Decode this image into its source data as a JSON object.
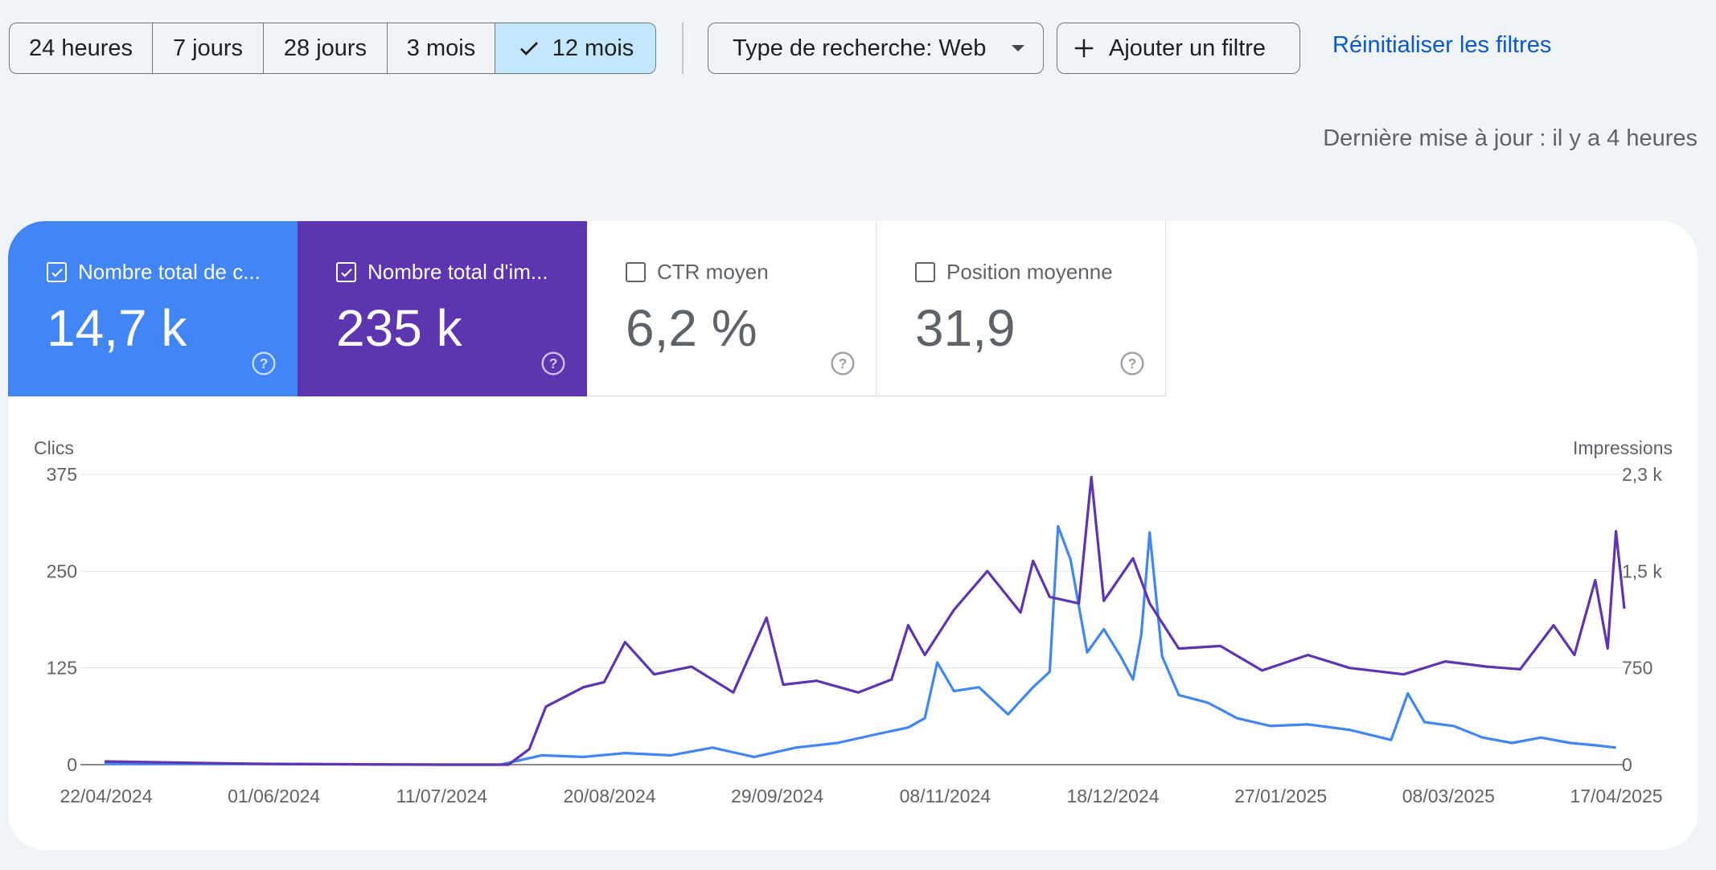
{
  "toolbar": {
    "ranges": [
      "24 heures",
      "7 jours",
      "28 jours",
      "3 mois",
      "12 mois"
    ],
    "selected_range": "12 mois",
    "search_type": "Type de recherche: Web",
    "add_filter": "Ajouter un filtre",
    "reset_filters": "Réinitialiser les filtres"
  },
  "last_updated": "Dernière mise à jour : il y a 4 heures",
  "metrics": [
    {
      "label": "Nombre total de c...",
      "value": "14,7 k",
      "checked": true,
      "color": "#4285f4"
    },
    {
      "label": "Nombre total d'im...",
      "value": "235 k",
      "checked": true,
      "color": "#5e35b1"
    },
    {
      "label": "CTR moyen",
      "value": "6,2 %",
      "checked": false
    },
    {
      "label": "Position moyenne",
      "value": "31,9",
      "checked": false
    }
  ],
  "colors": {
    "clicks": "#4285f4",
    "impressions": "#5e35b1",
    "accent": "#0b57d0",
    "selected_bg": "#c2e7ff"
  },
  "chart_data": {
    "type": "line",
    "left_axis_label": "Clics",
    "right_axis_label": "Impressions",
    "left_ticks": [
      "375",
      "250",
      "125",
      "0"
    ],
    "right_ticks": [
      "2,3 k",
      "1,5 k",
      "750",
      "0"
    ],
    "left_ylim": [
      0,
      375
    ],
    "right_ylim": [
      0,
      2250
    ],
    "grid": true,
    "x_tick_labels": [
      "22/04/2024",
      "01/06/2024",
      "11/07/2024",
      "20/08/2024",
      "29/09/2024",
      "08/11/2024",
      "18/12/2024",
      "27/01/2025",
      "08/03/2025",
      "17/04/2025"
    ],
    "x_range": [
      "2024-04-22",
      "2025-04-22"
    ],
    "series": [
      {
        "name": "Clics",
        "axis": "left",
        "color": "#4285f4",
        "points": [
          [
            "2024-04-22",
            1
          ],
          [
            "2024-06-01",
            1
          ],
          [
            "2024-07-11",
            0
          ],
          [
            "2024-07-26",
            0
          ],
          [
            "2024-08-05",
            12
          ],
          [
            "2024-08-15",
            10
          ],
          [
            "2024-08-25",
            15
          ],
          [
            "2024-09-05",
            12
          ],
          [
            "2024-09-15",
            22
          ],
          [
            "2024-09-25",
            10
          ],
          [
            "2024-10-05",
            22
          ],
          [
            "2024-10-15",
            28
          ],
          [
            "2024-10-25",
            40
          ],
          [
            "2024-11-01",
            48
          ],
          [
            "2024-11-05",
            60
          ],
          [
            "2024-11-08",
            132
          ],
          [
            "2024-11-12",
            95
          ],
          [
            "2024-11-18",
            100
          ],
          [
            "2024-11-25",
            65
          ],
          [
            "2024-12-01",
            100
          ],
          [
            "2024-12-05",
            120
          ],
          [
            "2024-12-07",
            308
          ],
          [
            "2024-12-10",
            265
          ],
          [
            "2024-12-14",
            145
          ],
          [
            "2024-12-18",
            175
          ],
          [
            "2024-12-22",
            140
          ],
          [
            "2024-12-25",
            110
          ],
          [
            "2024-12-27",
            168
          ],
          [
            "2024-12-29",
            300
          ],
          [
            "2025-01-01",
            140
          ],
          [
            "2025-01-05",
            90
          ],
          [
            "2025-01-12",
            80
          ],
          [
            "2025-01-19",
            60
          ],
          [
            "2025-01-27",
            50
          ],
          [
            "2025-02-05",
            52
          ],
          [
            "2025-02-15",
            45
          ],
          [
            "2025-02-25",
            32
          ],
          [
            "2025-03-01",
            92
          ],
          [
            "2025-03-05",
            55
          ],
          [
            "2025-03-12",
            50
          ],
          [
            "2025-03-19",
            35
          ],
          [
            "2025-03-26",
            28
          ],
          [
            "2025-04-02",
            35
          ],
          [
            "2025-04-09",
            28
          ],
          [
            "2025-04-15",
            25
          ],
          [
            "2025-04-20",
            22
          ]
        ]
      },
      {
        "name": "Impressions",
        "axis": "right",
        "color": "#5e35b1",
        "points": [
          [
            "2024-04-22",
            25
          ],
          [
            "2024-06-01",
            5
          ],
          [
            "2024-07-11",
            0
          ],
          [
            "2024-07-28",
            0
          ],
          [
            "2024-08-02",
            120
          ],
          [
            "2024-08-06",
            450
          ],
          [
            "2024-08-15",
            600
          ],
          [
            "2024-08-20",
            640
          ],
          [
            "2024-08-25",
            950
          ],
          [
            "2024-09-01",
            700
          ],
          [
            "2024-09-10",
            760
          ],
          [
            "2024-09-20",
            560
          ],
          [
            "2024-09-28",
            1140
          ],
          [
            "2024-10-02",
            620
          ],
          [
            "2024-10-10",
            650
          ],
          [
            "2024-10-20",
            560
          ],
          [
            "2024-10-28",
            660
          ],
          [
            "2024-11-01",
            1080
          ],
          [
            "2024-11-05",
            850
          ],
          [
            "2024-11-12",
            1200
          ],
          [
            "2024-11-20",
            1500
          ],
          [
            "2024-11-28",
            1180
          ],
          [
            "2024-12-01",
            1580
          ],
          [
            "2024-12-05",
            1300
          ],
          [
            "2024-12-12",
            1250
          ],
          [
            "2024-12-15",
            2230
          ],
          [
            "2024-12-18",
            1270
          ],
          [
            "2024-12-25",
            1600
          ],
          [
            "2024-12-29",
            1250
          ],
          [
            "2025-01-05",
            900
          ],
          [
            "2025-01-15",
            920
          ],
          [
            "2025-01-25",
            730
          ],
          [
            "2025-02-05",
            850
          ],
          [
            "2025-02-15",
            750
          ],
          [
            "2025-02-28",
            700
          ],
          [
            "2025-03-10",
            800
          ],
          [
            "2025-03-20",
            760
          ],
          [
            "2025-03-28",
            740
          ],
          [
            "2025-04-05",
            1080
          ],
          [
            "2025-04-10",
            850
          ],
          [
            "2025-04-15",
            1430
          ],
          [
            "2025-04-18",
            900
          ],
          [
            "2025-04-20",
            1810
          ],
          [
            "2025-04-22",
            1210
          ]
        ]
      }
    ]
  }
}
